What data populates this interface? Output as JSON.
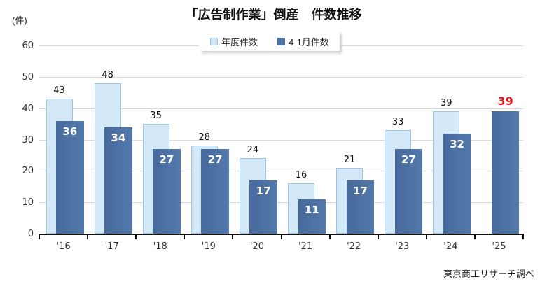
{
  "title": "「広告制作業」倒産　件数推移",
  "unit_label": "(件)",
  "source_note": "東京商工リサーチ調べ",
  "legend": {
    "items": [
      {
        "label": "年度件数"
      },
      {
        "label": "4-1月件数"
      }
    ]
  },
  "chart_data": {
    "type": "bar",
    "title": "「広告制作業」倒産　件数推移",
    "categories": [
      "'16",
      "'17",
      "'18",
      "'19",
      "'20",
      "'21",
      "'22",
      "'23",
      "'24",
      "'25"
    ],
    "series": [
      {
        "name": "年度件数",
        "values": [
          43,
          48,
          35,
          28,
          24,
          16,
          21,
          33,
          39,
          null
        ],
        "fill_color": "#d4e9f8",
        "border_color": "#9dc3e6",
        "label_color": "#111111"
      },
      {
        "name": "4-1月件数",
        "values": [
          36,
          34,
          27,
          27,
          17,
          11,
          17,
          27,
          32,
          39
        ],
        "fill_color": "#4d73a4",
        "fill_gradient": [
          "#48699b",
          "#527aab"
        ],
        "label_color": "#ffffff"
      }
    ],
    "highlight": {
      "category": "'25",
      "series": "4-1月件数",
      "value": 39,
      "label_color": "#e4131b",
      "label_position": "above"
    },
    "ylabel": "(件)",
    "ylim": [
      0,
      60
    ],
    "ytick_interval": 10,
    "yticks": [
      0,
      10,
      20,
      30,
      40,
      50,
      60
    ],
    "grid": true,
    "gridline_color": "#d9d9d9",
    "axis_color": "#111111",
    "legend_position": "top-center",
    "source": "東京商工リサーチ調べ"
  }
}
